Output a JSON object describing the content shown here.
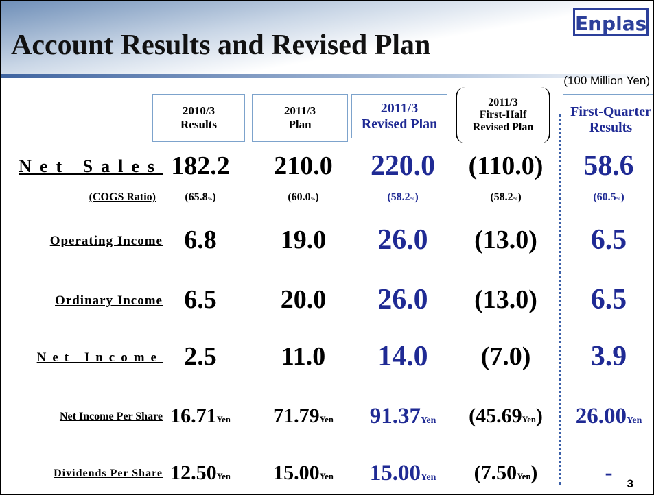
{
  "header": {
    "title": "Account Results and Revised Plan",
    "logo": "Enplas",
    "unit": "(100 Million Yen)"
  },
  "table": {
    "columns": [
      [
        "2010/3",
        "Results"
      ],
      [
        "2011/3",
        "Plan"
      ],
      [
        "2011/3",
        "Revised Plan"
      ],
      [
        "2011/3",
        "First-Half",
        "Revised Plan"
      ],
      [
        "First-Quarter",
        "Results"
      ]
    ],
    "rows": [
      {
        "label": "Net Sales",
        "cells": [
          [
            "182.2"
          ],
          [
            "210.0"
          ],
          [
            "220.0"
          ],
          [
            "(110.0)"
          ],
          [
            "58.6"
          ]
        ]
      },
      {
        "label": "(COGS Ratio)",
        "cells": [
          [
            "(65.8",
            "%",
            ")"
          ],
          [
            "(60.0",
            "%",
            ")"
          ],
          [
            "(58.2",
            "%",
            ")"
          ],
          [
            "(58.2",
            "%",
            ")"
          ],
          [
            "(60.5",
            "%",
            ")"
          ]
        ]
      },
      {
        "label": "Operating Income",
        "cells": [
          [
            "6.8"
          ],
          [
            "19.0"
          ],
          [
            "26.0"
          ],
          [
            "(13.0)"
          ],
          [
            "6.5"
          ]
        ]
      },
      {
        "label": "Ordinary Income",
        "cells": [
          [
            "6.5"
          ],
          [
            "20.0"
          ],
          [
            "26.0"
          ],
          [
            "(13.0)"
          ],
          [
            "6.5"
          ]
        ]
      },
      {
        "label": "Net Income",
        "cells": [
          [
            "2.5"
          ],
          [
            "11.0"
          ],
          [
            "14.0"
          ],
          [
            "(7.0)"
          ],
          [
            "3.9"
          ]
        ]
      },
      {
        "label": "Net Income Per Share",
        "cells": [
          [
            "16.71",
            "Yen"
          ],
          [
            "71.79",
            "Yen"
          ],
          [
            "91.37",
            "Yen"
          ],
          [
            "(45.69",
            "Yen",
            ")"
          ],
          [
            "26.00",
            "Yen"
          ]
        ]
      },
      {
        "label": "Dividends Per Share",
        "cells": [
          [
            "12.50",
            "Yen"
          ],
          [
            "15.00",
            "Yen"
          ],
          [
            "15.00",
            "Yen"
          ],
          [
            "(7.50",
            "Yen",
            ")"
          ],
          [
            "-"
          ]
        ]
      }
    ]
  },
  "footer": {
    "page": "3"
  }
}
